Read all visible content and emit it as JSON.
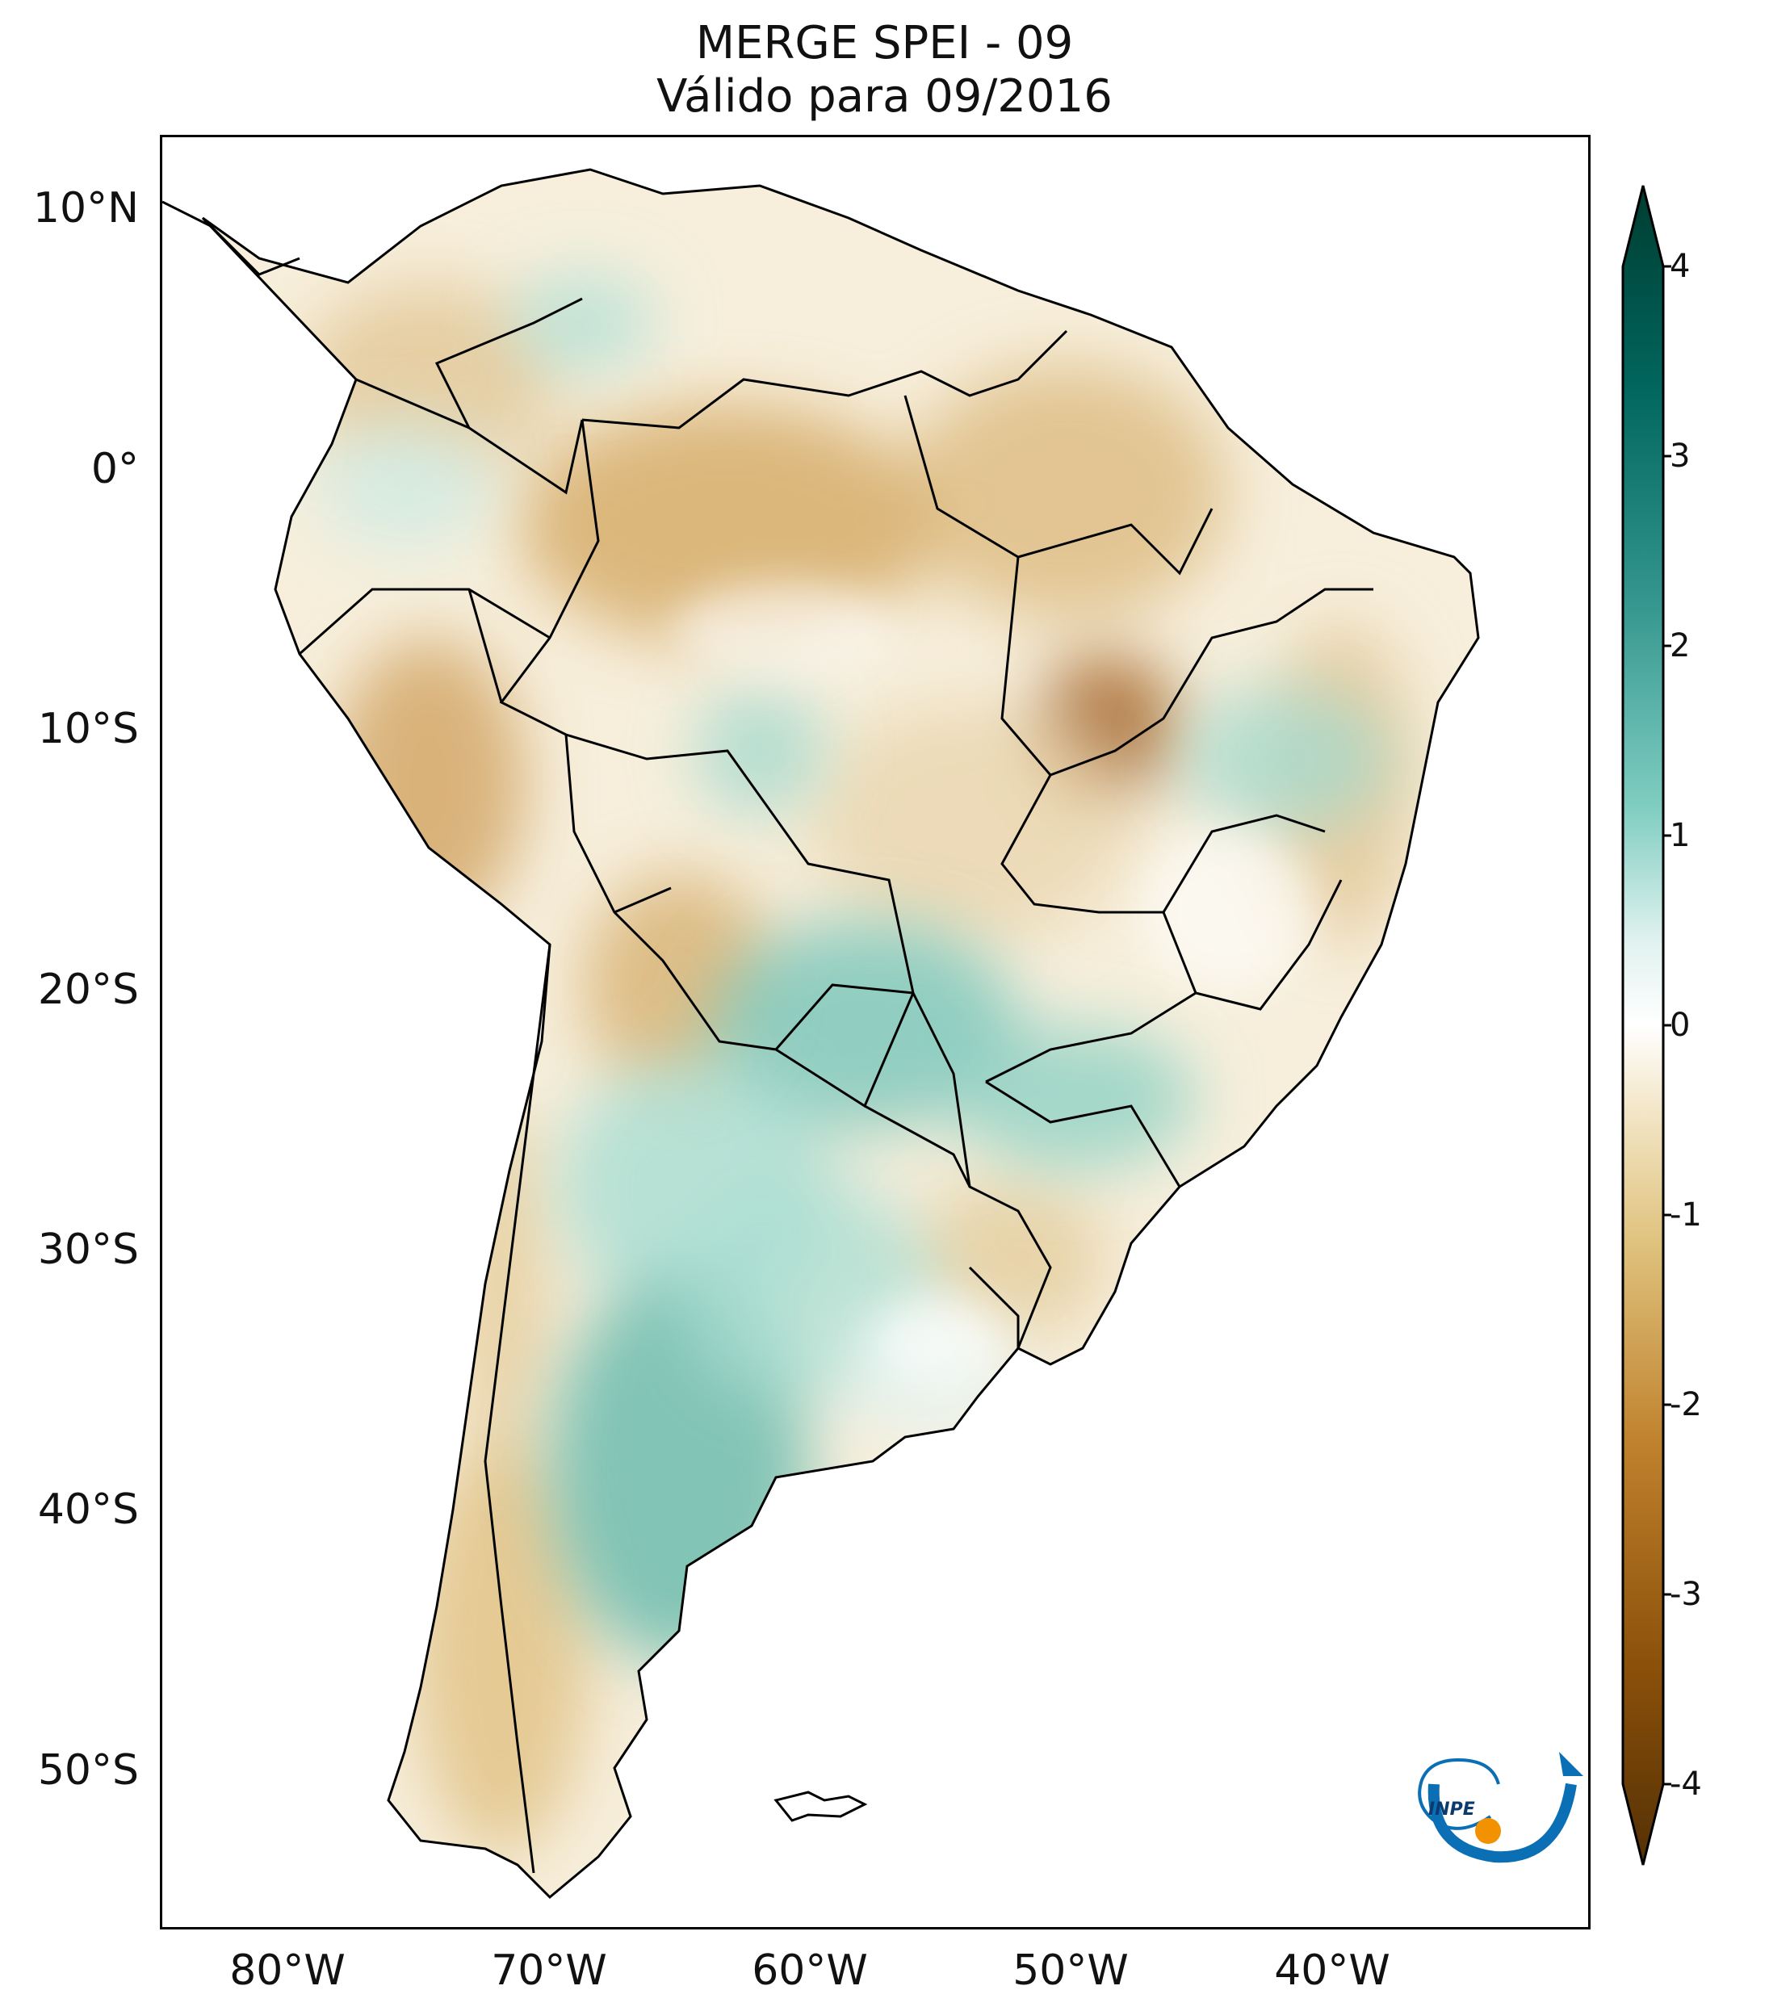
{
  "title": {
    "line1": "MERGE   SPEI - 09",
    "line2": "Válido para 09/2016"
  },
  "map": {
    "region": "South America",
    "variable": "SPEI - 09",
    "lat_ticks": [
      "10°N",
      "0°",
      "10°S",
      "20°S",
      "30°S",
      "40°S",
      "50°S"
    ],
    "lon_ticks": [
      "80°W",
      "70°W",
      "60°W",
      "50°W",
      "40°W"
    ],
    "logo": {
      "name": "INPE",
      "text": "INPE"
    }
  },
  "colorbar": {
    "ticks": [
      "4",
      "3",
      "2",
      "1",
      "0",
      "-1",
      "-2",
      "-3",
      "-4"
    ],
    "range": [
      -4,
      4
    ],
    "colors": {
      "dry_extreme": "#543005",
      "dry": "#bf812d",
      "neutral": "#ffffff",
      "wet": "#80cdc1",
      "wet_extreme": "#003c30"
    }
  }
}
